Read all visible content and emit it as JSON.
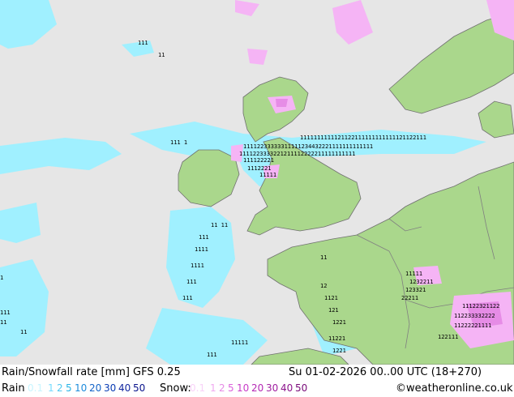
{
  "map": {
    "colors": {
      "sea": "#e6e6e6",
      "land": "#aad78c",
      "land_alt": "#c3e49c",
      "border": "#808080",
      "coast": "#707070",
      "rain_light": "#a0f0ff",
      "rain_mid": "#5ad2ff",
      "snow_light": "#f5b4f5",
      "snow_mid": "#e68ce6",
      "digit": "#000000"
    }
  },
  "footer": {
    "title": "Rain/Snowfall rate [mm] GFS 0.25",
    "datetime": "Su 01-02-2026 00..00 UTC (18+270)",
    "rain_label": "Rain",
    "snow_label": "Snow:",
    "credit": "©weatheronline.co.uk",
    "rain_legend": [
      {
        "label": "0.1",
        "color": "#c8f5ff"
      },
      {
        "label": "1",
        "color": "#78dcff"
      },
      {
        "label": "2",
        "color": "#50c8f0"
      },
      {
        "label": "5",
        "color": "#28b4e6"
      },
      {
        "label": "10",
        "color": "#1e8cdc"
      },
      {
        "label": "20",
        "color": "#1464c8"
      },
      {
        "label": "30",
        "color": "#0a3cb4"
      },
      {
        "label": "40",
        "color": "#1428a0"
      },
      {
        "label": "50",
        "color": "#0a148c"
      }
    ],
    "snow_legend": [
      {
        "label": "0.1",
        "color": "#f8d2f8"
      },
      {
        "label": "1",
        "color": "#f0aaf0"
      },
      {
        "label": "2",
        "color": "#e68ce6"
      },
      {
        "label": "5",
        "color": "#dc64dc"
      },
      {
        "label": "10",
        "color": "#c83cc8"
      },
      {
        "label": "20",
        "color": "#b428b4"
      },
      {
        "label": "30",
        "color": "#a01ea0"
      },
      {
        "label": "40",
        "color": "#8c148c"
      },
      {
        "label": "50",
        "color": "#780a78"
      }
    ]
  }
}
